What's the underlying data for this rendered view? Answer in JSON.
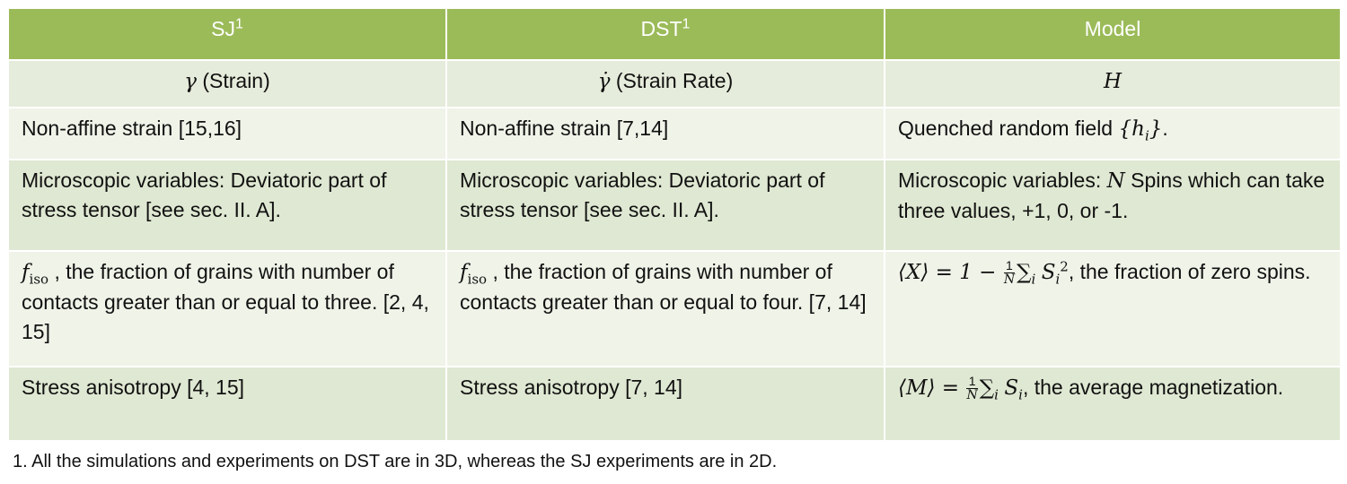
{
  "headers": {
    "col1": "SJ",
    "col2": "DST",
    "col3": "Model",
    "footnote_mark": "1"
  },
  "rows": {
    "symbols": {
      "col1_symbol": "γ",
      "col1_text": "(Strain)",
      "col2_symbol": "γ̇",
      "col2_text": "(Strain Rate)",
      "col3_symbol": "H"
    },
    "row1": {
      "col1": "Non-affine strain [15,16]",
      "col2": "Non-affine strain [7,14]",
      "col3_prefix": "Quenched random field",
      "col3_math": "{h",
      "col3_sub": "i",
      "col3_math_end": "}",
      "col3_suffix": "."
    },
    "row2": {
      "col1": "Microscopic variables: Deviatoric part of stress tensor [see sec. II. A].",
      "col2": "Microscopic variables: Deviatoric part of stress tensor [see sec. II. A].",
      "col3_prefix": "Microscopic variables:",
      "col3_math": "N",
      "col3_suffix": "Spins which can take three values, +1, 0, or -1."
    },
    "row3": {
      "f_symbol": "f",
      "f_sub": "iso",
      "col1_text": ", the fraction of grains with number of contacts greater than or equal to three. [2, 4, 15]",
      "col2_text": ", the fraction of grains with number of contacts greater than or equal to four. [7, 14]",
      "col3_lhs": "⟨X⟩ = 1 −",
      "col3_frac_num": "1",
      "col3_frac_den": "N",
      "col3_sum": "∑",
      "col3_sum_sub": "i",
      "col3_var": "S",
      "col3_var_sub": "i",
      "col3_var_sup": "2",
      "col3_text": ", the fraction of zero spins."
    },
    "row4": {
      "col1": "Stress anisotropy [4, 15]",
      "col2": "Stress anisotropy [7, 14]",
      "col3_lhs": "⟨M⟩ =",
      "col3_frac_num": "1",
      "col3_frac_den": "N",
      "col3_sum": "∑",
      "col3_sum_sub": "i",
      "col3_var": "S",
      "col3_var_sub": "i",
      "col3_text": ", the average magnetization."
    }
  },
  "footnote": {
    "number": "1.",
    "text": "All the simulations and experiments on DST are in 3D, whereas the SJ experiments are in 2D."
  },
  "colors": {
    "header_bg": "#9bbb59",
    "row_light": "#eff3e8",
    "row_dark": "#dfe8d2",
    "symbol_row": "#e6ecdb"
  }
}
